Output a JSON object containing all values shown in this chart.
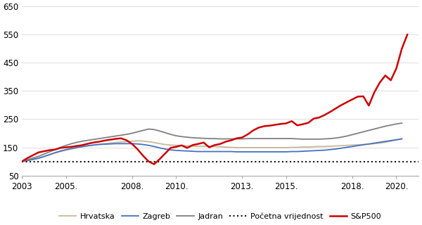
{
  "title": "",
  "ylim": [
    50,
    650
  ],
  "yticks": [
    50,
    150,
    250,
    350,
    450,
    550,
    650
  ],
  "ytick_labels": [
    "50",
    "150",
    "250",
    "350",
    "450",
    "550",
    "650"
  ],
  "xtick_labels": [
    "2003",
    "2005.",
    "2008.",
    "2010.",
    "2013.",
    "2015.",
    "2018.",
    "2020."
  ],
  "xtick_positions": [
    2003,
    2005,
    2008,
    2010,
    2013,
    2015,
    2018,
    2020
  ],
  "background_color": "#ffffff",
  "plot_bg_color": "#ffffff",
  "hrvatska": {
    "label": "Hrvatska",
    "color": "#c8b89a",
    "linewidth": 1.3,
    "x": [
      2003.0,
      2003.25,
      2003.5,
      2003.75,
      2004.0,
      2004.25,
      2004.5,
      2004.75,
      2005.0,
      2005.25,
      2005.5,
      2005.75,
      2006.0,
      2006.25,
      2006.5,
      2006.75,
      2007.0,
      2007.25,
      2007.5,
      2007.75,
      2008.0,
      2008.25,
      2008.5,
      2008.75,
      2009.0,
      2009.25,
      2009.5,
      2009.75,
      2010.0,
      2010.25,
      2010.5,
      2010.75,
      2011.0,
      2011.25,
      2011.5,
      2011.75,
      2012.0,
      2012.25,
      2012.5,
      2012.75,
      2013.0,
      2013.25,
      2013.5,
      2013.75,
      2014.0,
      2014.25,
      2014.5,
      2014.75,
      2015.0,
      2015.25,
      2015.5,
      2015.75,
      2016.0,
      2016.25,
      2016.5,
      2016.75,
      2017.0,
      2017.25,
      2017.5,
      2017.75,
      2018.0,
      2018.25,
      2018.5,
      2018.75,
      2019.0,
      2019.25,
      2019.5,
      2019.75,
      2020.0,
      2020.25
    ],
    "y": [
      100,
      104,
      108,
      112,
      118,
      124,
      130,
      135,
      140,
      144,
      148,
      152,
      155,
      158,
      161,
      163,
      165,
      167,
      169,
      170,
      172,
      173,
      172,
      170,
      167,
      163,
      160,
      158,
      157,
      156,
      155,
      154,
      154,
      154,
      154,
      153,
      152,
      151,
      150,
      149,
      149,
      149,
      149,
      149,
      149,
      149,
      149,
      149,
      149,
      150,
      150,
      151,
      151,
      152,
      153,
      153,
      154,
      155,
      156,
      157,
      158,
      159,
      160,
      161,
      163,
      165,
      168,
      172,
      176,
      180
    ]
  },
  "zagreb": {
    "label": "Zagreb",
    "color": "#4472c4",
    "linewidth": 1.3,
    "x": [
      2003.0,
      2003.25,
      2003.5,
      2003.75,
      2004.0,
      2004.25,
      2004.5,
      2004.75,
      2005.0,
      2005.25,
      2005.5,
      2005.75,
      2006.0,
      2006.25,
      2006.5,
      2006.75,
      2007.0,
      2007.25,
      2007.5,
      2007.75,
      2008.0,
      2008.25,
      2008.5,
      2008.75,
      2009.0,
      2009.25,
      2009.5,
      2009.75,
      2010.0,
      2010.25,
      2010.5,
      2010.75,
      2011.0,
      2011.25,
      2011.5,
      2011.75,
      2012.0,
      2012.25,
      2012.5,
      2012.75,
      2013.0,
      2013.25,
      2013.5,
      2013.75,
      2014.0,
      2014.25,
      2014.5,
      2014.75,
      2015.0,
      2015.25,
      2015.5,
      2015.75,
      2016.0,
      2016.25,
      2016.5,
      2016.75,
      2017.0,
      2017.25,
      2017.5,
      2017.75,
      2018.0,
      2018.25,
      2018.5,
      2018.75,
      2019.0,
      2019.25,
      2019.5,
      2019.75,
      2020.0,
      2020.25
    ],
    "y": [
      100,
      103,
      107,
      111,
      117,
      124,
      131,
      137,
      142,
      146,
      150,
      153,
      156,
      158,
      160,
      161,
      162,
      163,
      163,
      163,
      163,
      162,
      160,
      157,
      153,
      148,
      144,
      141,
      139,
      138,
      137,
      136,
      135,
      135,
      135,
      135,
      135,
      135,
      135,
      134,
      134,
      134,
      134,
      134,
      134,
      134,
      134,
      134,
      134,
      135,
      135,
      136,
      137,
      138,
      139,
      140,
      142,
      144,
      147,
      150,
      153,
      156,
      159,
      162,
      165,
      168,
      171,
      174,
      177,
      180
    ]
  },
  "jadran": {
    "label": "Jadran",
    "color": "#808080",
    "linewidth": 1.3,
    "x": [
      2003.0,
      2003.25,
      2003.5,
      2003.75,
      2004.0,
      2004.25,
      2004.5,
      2004.75,
      2005.0,
      2005.25,
      2005.5,
      2005.75,
      2006.0,
      2006.25,
      2006.5,
      2006.75,
      2007.0,
      2007.25,
      2007.5,
      2007.75,
      2008.0,
      2008.25,
      2008.5,
      2008.75,
      2009.0,
      2009.25,
      2009.5,
      2009.75,
      2010.0,
      2010.25,
      2010.5,
      2010.75,
      2011.0,
      2011.25,
      2011.5,
      2011.75,
      2012.0,
      2012.25,
      2012.5,
      2012.75,
      2013.0,
      2013.25,
      2013.5,
      2013.75,
      2014.0,
      2014.25,
      2014.5,
      2014.75,
      2015.0,
      2015.25,
      2015.5,
      2015.75,
      2016.0,
      2016.25,
      2016.5,
      2016.75,
      2017.0,
      2017.25,
      2017.5,
      2017.75,
      2018.0,
      2018.25,
      2018.5,
      2018.75,
      2019.0,
      2019.25,
      2019.5,
      2019.75,
      2020.0,
      2020.25
    ],
    "y": [
      100,
      106,
      112,
      118,
      126,
      134,
      142,
      150,
      157,
      163,
      168,
      172,
      175,
      178,
      181,
      184,
      187,
      190,
      193,
      196,
      200,
      205,
      210,
      215,
      213,
      208,
      202,
      196,
      191,
      188,
      186,
      184,
      183,
      182,
      181,
      181,
      180,
      180,
      180,
      180,
      180,
      181,
      181,
      181,
      181,
      181,
      181,
      181,
      181,
      181,
      180,
      179,
      179,
      179,
      179,
      180,
      181,
      183,
      186,
      190,
      195,
      200,
      205,
      210,
      215,
      220,
      225,
      229,
      233,
      236
    ]
  },
  "sp500": {
    "label": "S&P500",
    "color": "#cc0000",
    "linewidth": 1.8,
    "x": [
      2003.0,
      2003.25,
      2003.5,
      2003.75,
      2004.0,
      2004.25,
      2004.5,
      2004.75,
      2005.0,
      2005.25,
      2005.5,
      2005.75,
      2006.0,
      2006.25,
      2006.5,
      2006.75,
      2007.0,
      2007.25,
      2007.5,
      2007.75,
      2008.0,
      2008.25,
      2008.5,
      2008.75,
      2009.0,
      2009.25,
      2009.5,
      2009.75,
      2010.0,
      2010.25,
      2010.5,
      2010.75,
      2011.0,
      2011.25,
      2011.5,
      2011.75,
      2012.0,
      2012.25,
      2012.5,
      2012.75,
      2013.0,
      2013.25,
      2013.5,
      2013.75,
      2014.0,
      2014.25,
      2014.5,
      2014.75,
      2015.0,
      2015.25,
      2015.5,
      2015.75,
      2016.0,
      2016.25,
      2016.5,
      2016.75,
      2017.0,
      2017.25,
      2017.5,
      2017.75,
      2018.0,
      2018.25,
      2018.5,
      2018.75,
      2019.0,
      2019.25,
      2019.5,
      2019.75,
      2020.0,
      2020.25,
      2020.5
    ],
    "y": [
      100,
      112,
      122,
      132,
      136,
      140,
      142,
      148,
      150,
      152,
      155,
      158,
      163,
      167,
      170,
      174,
      177,
      180,
      182,
      175,
      162,
      143,
      120,
      100,
      90,
      108,
      128,
      148,
      152,
      157,
      148,
      158,
      162,
      167,
      150,
      158,
      162,
      170,
      175,
      182,
      185,
      196,
      210,
      220,
      225,
      227,
      230,
      233,
      235,
      243,
      228,
      232,
      237,
      252,
      256,
      265,
      276,
      288,
      300,
      310,
      320,
      330,
      331,
      298,
      345,
      380,
      405,
      388,
      430,
      500,
      550
    ]
  },
  "pocetna": {
    "label": "Početna vrijednost",
    "color": "#111111",
    "linewidth": 1.5,
    "linestyle": "dotted",
    "value": 100
  },
  "legend_fontsize": 8,
  "tick_fontsize": 8.5
}
